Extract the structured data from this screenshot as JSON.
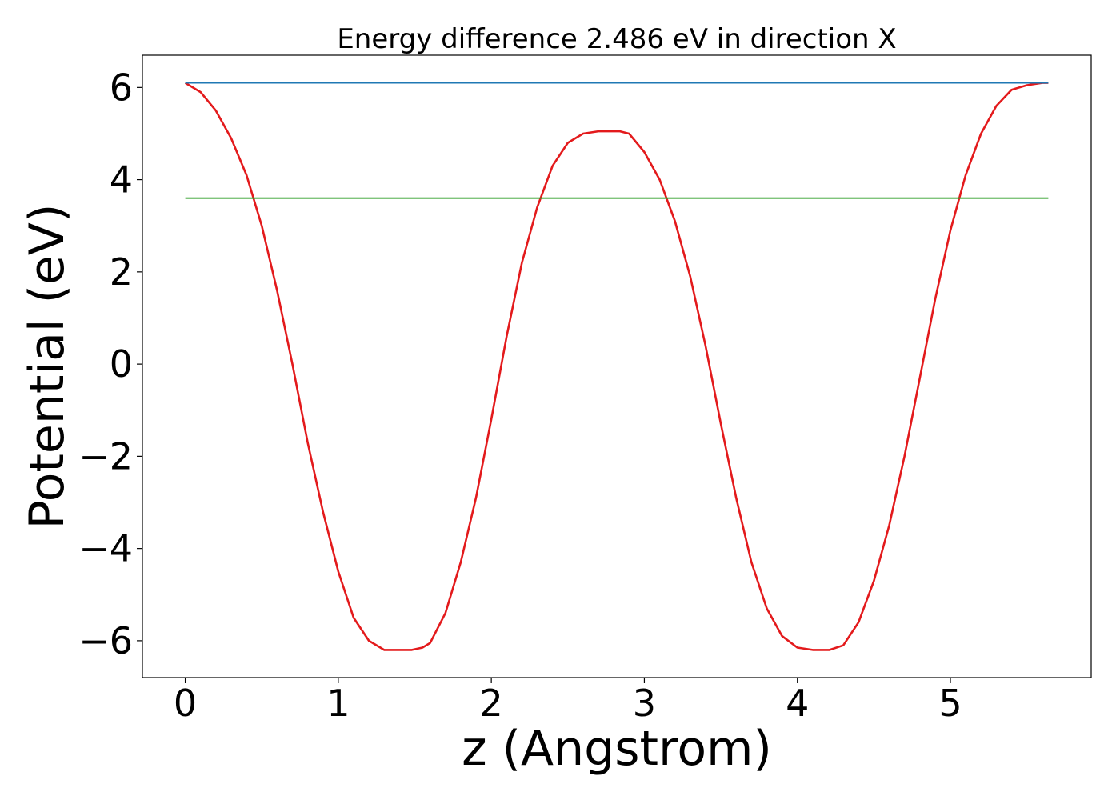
{
  "chart_data": {
    "type": "line",
    "title": "Energy difference 2.486 eV in direction X",
    "xlabel": "z (Angstrom)",
    "ylabel": "Potential (eV)",
    "xlim": [
      -0.28,
      5.92
    ],
    "ylim": [
      -6.8,
      6.7
    ],
    "x_ticks": [
      0,
      1,
      2,
      3,
      4,
      5
    ],
    "y_ticks": [
      6,
      4,
      2,
      0,
      -2,
      -4,
      -6
    ],
    "x_tick_labels": [
      "0",
      "1",
      "2",
      "3",
      "4",
      "5"
    ],
    "y_tick_labels": [
      "6",
      "4",
      "2",
      "0",
      "−2",
      "−4",
      "−6"
    ],
    "grid": false,
    "legend": "none",
    "series": [
      {
        "kind": "curve",
        "color": "#e31a1c",
        "x": [
          0.0,
          0.1,
          0.2,
          0.3,
          0.4,
          0.5,
          0.6,
          0.7,
          0.8,
          0.9,
          1.0,
          1.1,
          1.2,
          1.3,
          1.4,
          1.48,
          1.55,
          1.6,
          1.7,
          1.8,
          1.9,
          2.0,
          2.1,
          2.2,
          2.3,
          2.4,
          2.5,
          2.6,
          2.7,
          2.8,
          2.84,
          2.9,
          3.0,
          3.1,
          3.2,
          3.3,
          3.4,
          3.5,
          3.6,
          3.7,
          3.8,
          3.9,
          4.0,
          4.1,
          4.21,
          4.3,
          4.4,
          4.5,
          4.6,
          4.7,
          4.8,
          4.9,
          5.0,
          5.1,
          5.2,
          5.3,
          5.4,
          5.5,
          5.6,
          5.64
        ],
        "y": [
          6.1,
          5.9,
          5.5,
          4.9,
          4.1,
          3.0,
          1.6,
          0.0,
          -1.7,
          -3.2,
          -4.5,
          -5.5,
          -6.0,
          -6.2,
          -6.2,
          -6.2,
          -6.15,
          -6.05,
          -5.4,
          -4.3,
          -2.9,
          -1.2,
          0.6,
          2.2,
          3.4,
          4.3,
          4.8,
          5.0,
          5.05,
          5.05,
          5.05,
          5.0,
          4.6,
          4.0,
          3.1,
          1.9,
          0.4,
          -1.3,
          -2.9,
          -4.3,
          -5.3,
          -5.9,
          -6.15,
          -6.2,
          -6.2,
          -6.1,
          -5.6,
          -4.7,
          -3.5,
          -2.0,
          -0.3,
          1.4,
          2.9,
          4.1,
          5.0,
          5.6,
          5.95,
          6.05,
          6.1,
          6.1
        ]
      },
      {
        "kind": "hline",
        "color": "#1f78b4",
        "x": [
          0.0,
          5.64
        ],
        "y": [
          6.1,
          6.1
        ]
      },
      {
        "kind": "hline",
        "color": "#33a02c",
        "x": [
          0.0,
          5.64
        ],
        "y": [
          3.6,
          3.6
        ]
      }
    ]
  }
}
